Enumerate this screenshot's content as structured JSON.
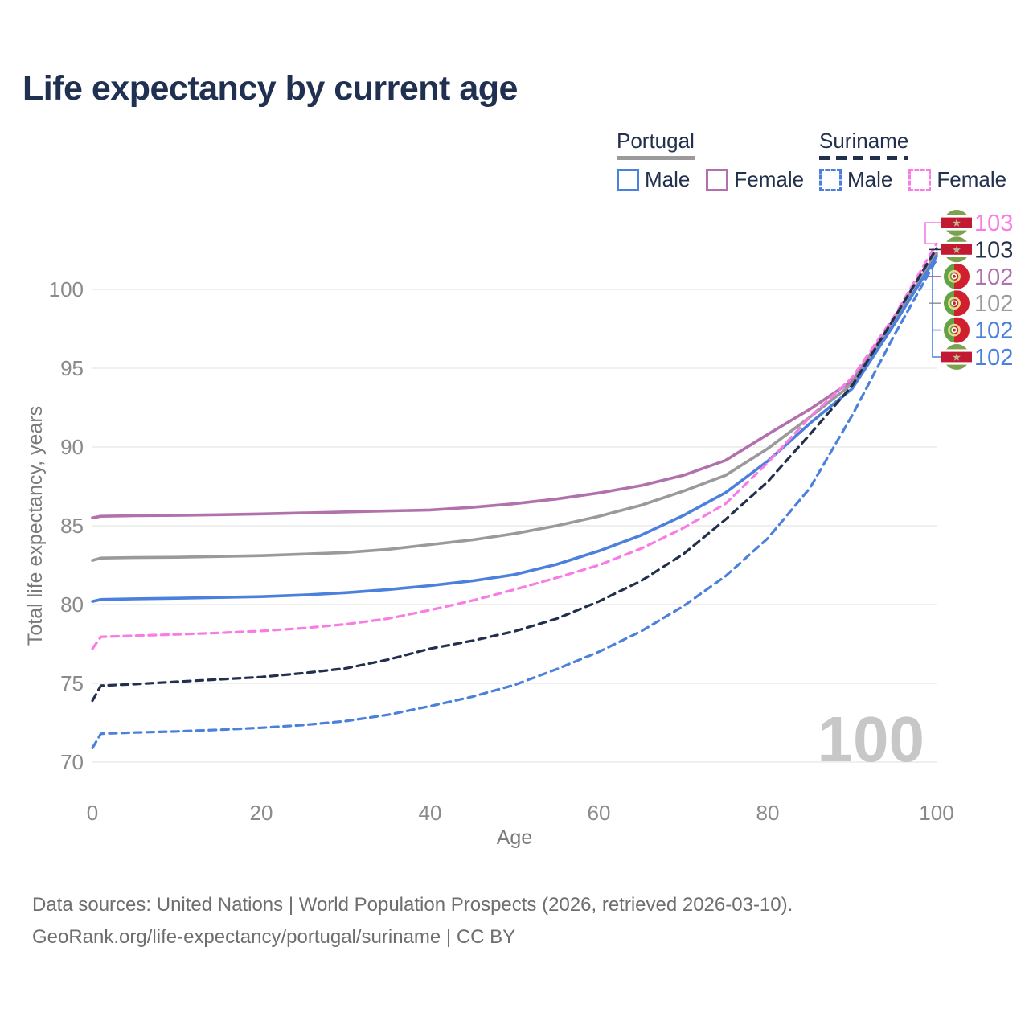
{
  "title": "Life expectancy by current age",
  "legend": {
    "groups": [
      {
        "id": "portugal",
        "label": "Portugal",
        "line_color": "#9a9a9a",
        "line_style": "solid",
        "items": [
          {
            "label": "Male",
            "color": "#4b80dc",
            "style": "solid"
          },
          {
            "label": "Female",
            "color": "#b171ac",
            "style": "solid"
          }
        ]
      },
      {
        "id": "suriname",
        "label": "Suriname",
        "line_color": "#22304e",
        "line_style": "dashed",
        "items": [
          {
            "label": "Male",
            "color": "#4b80dc",
            "style": "dashed"
          },
          {
            "label": "Female",
            "color": "#f97ce4",
            "style": "dashed"
          }
        ]
      }
    ]
  },
  "chart_data": {
    "type": "line",
    "title": "Life expectancy by current age",
    "xlabel": "Age",
    "ylabel": "Total life expectancy, years",
    "xlim": [
      0,
      100
    ],
    "ylim": [
      68.5,
      104.5
    ],
    "xticks": [
      0,
      20,
      40,
      60,
      80,
      100
    ],
    "yticks": [
      70,
      75,
      80,
      85,
      90,
      95,
      100
    ],
    "grid": "horizontal",
    "grid_color": "#eaeaea",
    "watermark": "100",
    "watermark_color": "#c7c7c7",
    "x": [
      0,
      1,
      5,
      10,
      15,
      20,
      25,
      30,
      35,
      40,
      45,
      50,
      55,
      60,
      65,
      70,
      75,
      80,
      85,
      90,
      95,
      100
    ],
    "series": [
      {
        "name": "Portugal Female",
        "slug": "portugal-female",
        "country": "Portugal",
        "sex": "Female",
        "color": "#b171ac",
        "dashed": false,
        "flag": "portugal",
        "end_label": "102",
        "end_label_color": "#b171ac",
        "values": [
          85.5,
          85.6,
          85.64,
          85.66,
          85.7,
          85.75,
          85.81,
          85.88,
          85.94,
          86.0,
          86.17,
          86.4,
          86.7,
          87.08,
          87.55,
          88.2,
          89.15,
          90.8,
          92.4,
          94.2,
          98.1,
          102.3
        ]
      },
      {
        "name": "Portugal Both sexes",
        "slug": "portugal-both",
        "country": "Portugal",
        "sex": "Both",
        "color": "#9a9a9a",
        "dashed": false,
        "flag": "portugal",
        "end_label": "102",
        "end_label_color": "#9c9c9c",
        "values": [
          82.8,
          82.95,
          82.98,
          83.0,
          83.05,
          83.1,
          83.2,
          83.3,
          83.5,
          83.8,
          84.1,
          84.5,
          85.0,
          85.6,
          86.3,
          87.2,
          88.2,
          89.9,
          91.9,
          94.0,
          98.0,
          102.2
        ]
      },
      {
        "name": "Portugal Male",
        "slug": "portugal-male",
        "country": "Portugal",
        "sex": "Male",
        "color": "#4b80dc",
        "dashed": false,
        "flag": "portugal",
        "end_label": "102",
        "end_label_color": "#4b80dc",
        "values": [
          80.2,
          80.32,
          80.36,
          80.4,
          80.45,
          80.5,
          80.6,
          80.75,
          80.95,
          81.2,
          81.5,
          81.9,
          82.55,
          83.4,
          84.4,
          85.65,
          87.1,
          89.1,
          91.5,
          93.7,
          97.8,
          102.1
        ]
      },
      {
        "name": "Suriname Female",
        "slug": "suriname-female",
        "country": "Suriname",
        "sex": "Female",
        "color": "#f97ce4",
        "dashed": true,
        "flag": "suriname",
        "end_label": "103",
        "end_label_color": "#f97ce4",
        "values": [
          77.2,
          77.95,
          78.02,
          78.1,
          78.2,
          78.32,
          78.5,
          78.75,
          79.1,
          79.65,
          80.25,
          80.95,
          81.7,
          82.5,
          83.55,
          84.85,
          86.4,
          89.0,
          91.9,
          94.4,
          98.3,
          102.9
        ]
      },
      {
        "name": "Suriname Both sexes",
        "slug": "suriname-both",
        "country": "Suriname",
        "sex": "Both",
        "color": "#22304e",
        "dashed": true,
        "flag": "suriname",
        "end_label": "103",
        "end_label_color": "#22304e",
        "values": [
          73.9,
          74.85,
          74.95,
          75.1,
          75.25,
          75.4,
          75.65,
          75.95,
          76.5,
          77.2,
          77.7,
          78.3,
          79.1,
          80.2,
          81.5,
          83.2,
          85.4,
          87.8,
          90.8,
          93.9,
          98.2,
          102.6
        ]
      },
      {
        "name": "Suriname Male",
        "slug": "suriname-male",
        "country": "Suriname",
        "sex": "Male",
        "color": "#4b80dc",
        "dashed": true,
        "flag": "suriname",
        "end_label": "102",
        "end_label_color": "#4b80dc",
        "values": [
          70.9,
          71.8,
          71.88,
          71.95,
          72.05,
          72.18,
          72.35,
          72.6,
          73.0,
          73.55,
          74.15,
          74.9,
          75.9,
          77.0,
          78.3,
          79.9,
          81.8,
          84.2,
          87.4,
          92.0,
          97.1,
          101.9
        ]
      }
    ]
  },
  "flags": {
    "portugal": {
      "green": "#63a245",
      "red": "#d0202f",
      "emblem_ring": "#e9d98b",
      "emblem_inner": "#ffffff",
      "emblem_center": "#d0202f"
    },
    "suriname": {
      "green": "#7ba24f",
      "red": "#c21a33",
      "white": "#ffffff",
      "star": "#b9ba90"
    }
  },
  "footer": {
    "line1": "Data sources: United Nations | World Population Prospects (2026, retrieved 2026-03-10).",
    "line2": "GeoRank.org/life-expectancy/portugal/suriname | CC BY"
  }
}
